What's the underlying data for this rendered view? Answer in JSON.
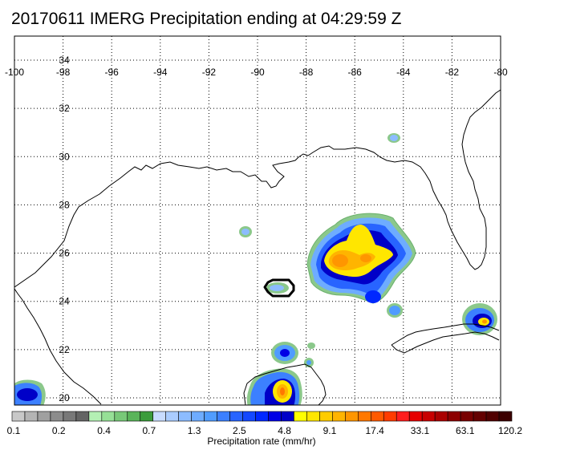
{
  "title": "20170611 IMERG Precipitation ending at 04:29:59 Z",
  "map": {
    "lon_range": [
      -100,
      -80
    ],
    "lat_range": [
      19.5,
      35
    ],
    "lon_ticks": [
      "-100",
      "-98",
      "-96",
      "-94",
      "-92",
      "-90",
      "-88",
      "-86",
      "-84",
      "-82",
      "-80"
    ],
    "lat_ticks": [
      "34",
      "32",
      "30",
      "28",
      "26",
      "24",
      "22",
      "20"
    ],
    "lon_tick_values": [
      -100,
      -98,
      -96,
      -94,
      -92,
      -90,
      -88,
      -86,
      -84,
      -82,
      -80
    ],
    "lat_tick_values": [
      34,
      32,
      30,
      28,
      26,
      24,
      22,
      20
    ],
    "gridlines": "dotted"
  },
  "colorbar": {
    "title": "Precipitation rate (mm/hr)",
    "labels": [
      "0.1",
      "0.2",
      "0.4",
      "0.7",
      "1.3",
      "2.5",
      "4.8",
      "9.1",
      "17.4",
      "33.1",
      "63.1",
      "120.2"
    ],
    "colors": [
      "#c8c8c8",
      "#b4b4b4",
      "#a0a0a0",
      "#8c8c8c",
      "#787878",
      "#646464",
      "#b4f0b4",
      "#96e096",
      "#78c878",
      "#5ab45a",
      "#3c9c3c",
      "#c8dcff",
      "#aaccff",
      "#8cbcff",
      "#6eacff",
      "#509cff",
      "#3c80ff",
      "#2864ff",
      "#1448ff",
      "#0028ff",
      "#0000e6",
      "#0000c8",
      "#ffff00",
      "#ffe600",
      "#ffcc00",
      "#ffb400",
      "#ff9600",
      "#ff7800",
      "#ff5a00",
      "#ff3c00",
      "#ff1e1e",
      "#e60000",
      "#c80000",
      "#aa0000",
      "#8c0000",
      "#780000",
      "#640000",
      "#500000",
      "#3c0000"
    ]
  }
}
